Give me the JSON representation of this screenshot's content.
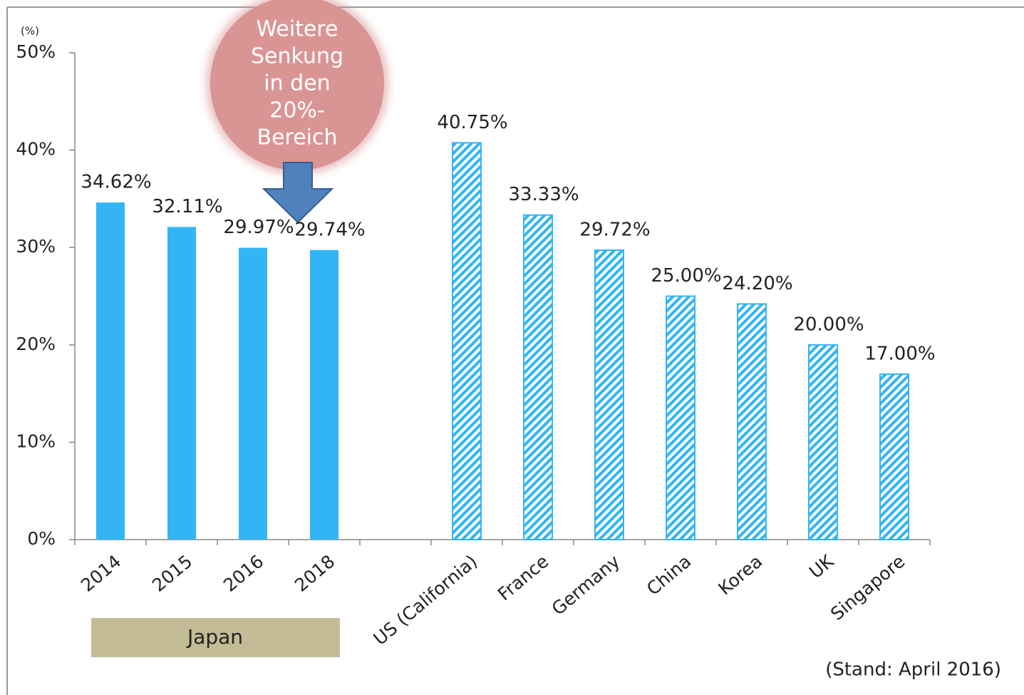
{
  "chart_data": {
    "type": "bar",
    "categories": [
      "2014",
      "2015",
      "2016",
      "2018",
      null,
      "US (California)",
      "France",
      "Germany",
      "China",
      "Korea",
      "UK",
      "Singapore"
    ],
    "values": [
      34.62,
      32.11,
      29.97,
      29.74,
      null,
      40.75,
      33.33,
      29.72,
      25.0,
      24.2,
      20.0,
      17.0
    ],
    "value_labels": [
      "34.62%",
      "32.11%",
      "29.97%",
      "29.74%",
      null,
      "40.75%",
      "33.33%",
      "29.72%",
      "25.00%",
      "24.20%",
      "20.00%",
      "17.00%"
    ],
    "hatched": [
      false,
      false,
      false,
      false,
      null,
      true,
      true,
      true,
      true,
      true,
      true,
      true
    ],
    "color": "#33b5f5",
    "ylim": [
      0,
      50
    ],
    "yticks": [
      {
        "value": 0,
        "label": "0%"
      },
      {
        "value": 10,
        "label": "10%"
      },
      {
        "value": 20,
        "label": "20%"
      },
      {
        "value": 30,
        "label": "30%"
      },
      {
        "value": 40,
        "label": "40%"
      },
      {
        "value": 50,
        "label": "50%"
      }
    ],
    "y_unit": "(%)",
    "annotation": [
      "Weitere",
      "Senkung",
      "in den",
      "20%-",
      "Bereich"
    ],
    "group_label": "Japan",
    "footnote": "(Stand: April 2016)"
  }
}
